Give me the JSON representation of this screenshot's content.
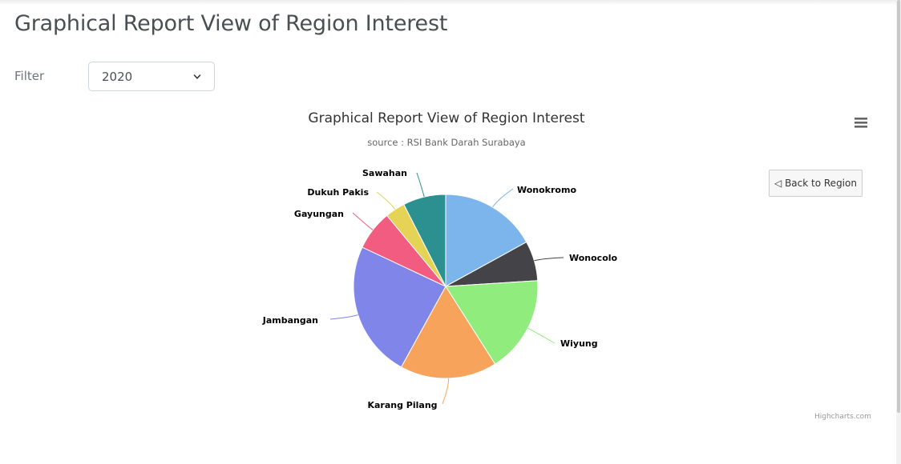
{
  "page": {
    "title": "Graphical Report View of Region Interest",
    "filter_label": "Filter",
    "filter_value": "2020"
  },
  "chart_toolbar": {
    "back_button": "◁ Back to Region",
    "credits": "Highcharts.com"
  },
  "chart_data": {
    "type": "pie",
    "title": "Graphical Report View of Region Interest",
    "subtitle": "source : RSI Bank Darah Surabaya",
    "slices": [
      {
        "name": "Wonokromo",
        "value": 17,
        "color": "#7cb5ec"
      },
      {
        "name": "Wonocolo",
        "value": 7,
        "color": "#434348"
      },
      {
        "name": "Wiyung",
        "value": 17,
        "color": "#90ed7d"
      },
      {
        "name": "Karang Pilang",
        "value": 17,
        "color": "#f7a35c"
      },
      {
        "name": "Jambangan",
        "value": 24,
        "color": "#8085e9"
      },
      {
        "name": "Gayungan",
        "value": 7,
        "color": "#f15c80"
      },
      {
        "name": "Dukuh Pakis",
        "value": 3.5,
        "color": "#e4d354"
      },
      {
        "name": "Sawahan",
        "value": 7.5,
        "color": "#2b908f"
      }
    ]
  }
}
